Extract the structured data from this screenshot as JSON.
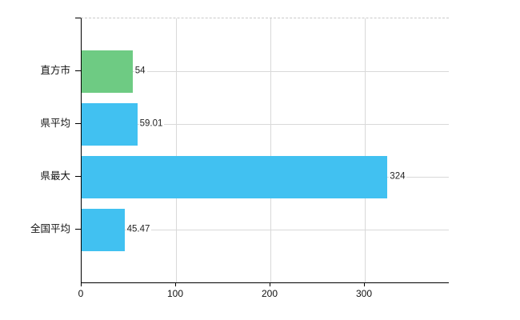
{
  "chart_data": {
    "type": "bar",
    "orientation": "horizontal",
    "title": "",
    "xlabel": "",
    "ylabel": "",
    "categories": [
      "直方市",
      "県平均",
      "県最大",
      "全国平均"
    ],
    "values": [
      54,
      59.01,
      324,
      45.47
    ],
    "value_labels": [
      "54",
      "59.01",
      "324",
      "45.47"
    ],
    "bar_colors": [
      "#6ecb83",
      "#41c1f1",
      "#41c1f1",
      "#41c1f1"
    ],
    "x_ticks": [
      "0",
      "100",
      "200",
      "300"
    ],
    "x_tick_values": [
      0,
      100,
      200,
      300
    ],
    "xlim": [
      0,
      389
    ],
    "grid": "on",
    "legend": "none",
    "colors": {
      "green_bar": "#6ecb83",
      "blue_bar": "#41c1f1",
      "gridline": "#d9d9d9",
      "top_border_dashed": "#c9c9c9",
      "axis": "#000000",
      "text": "#111111"
    }
  }
}
